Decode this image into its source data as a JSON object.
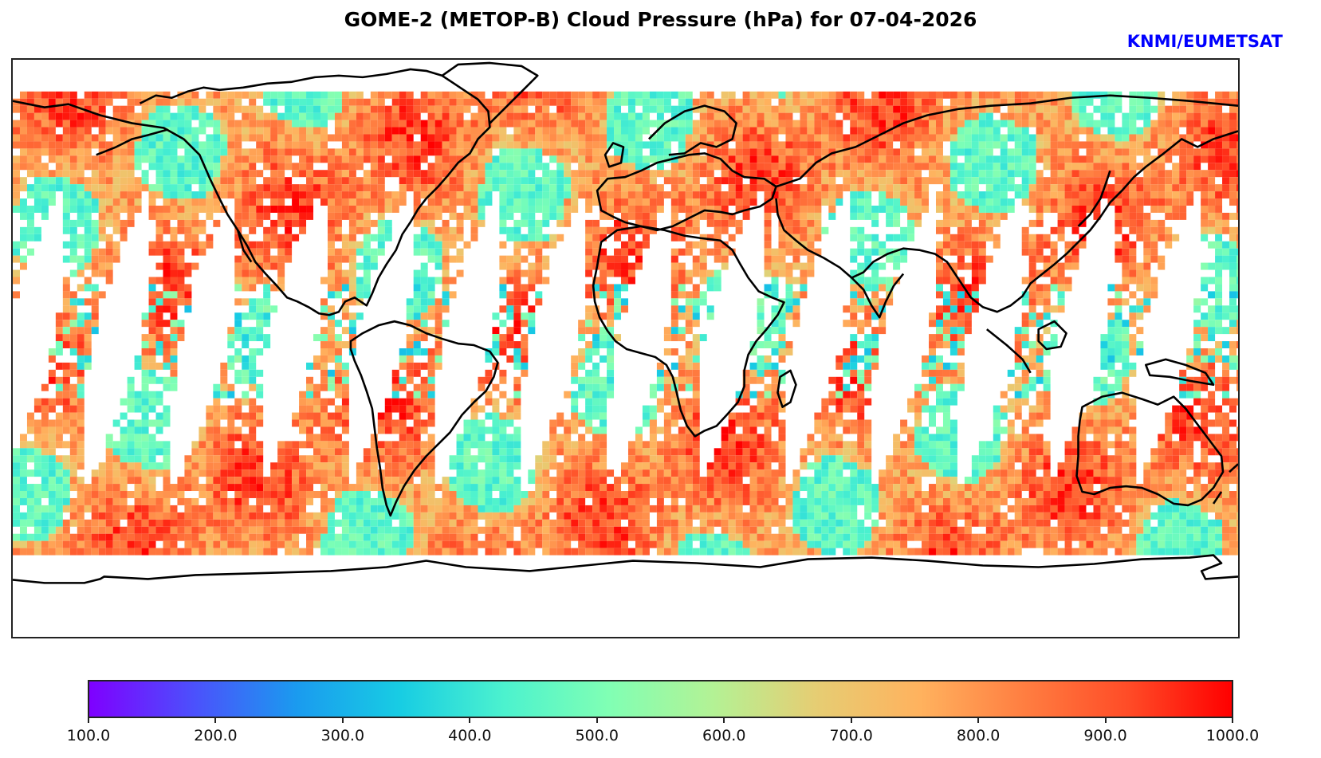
{
  "title": "GOME-2 (METOP-B) Cloud Pressure (hPa) for 07-04-2026",
  "credit": "KNMI/EUMETSAT",
  "map": {
    "projection": "equirectangular",
    "field": "cloud pressure",
    "units": "hPa",
    "no_data_color": "#ffffff",
    "coastline_color": "#000000"
  },
  "colorbar": {
    "colormap": "rainbow",
    "min": 100.0,
    "max": 1000.0,
    "ticks": [
      "100.0",
      "200.0",
      "300.0",
      "400.0",
      "500.0",
      "600.0",
      "700.0",
      "800.0",
      "900.0",
      "1000.0"
    ],
    "tick_values": [
      100,
      200,
      300,
      400,
      500,
      600,
      700,
      800,
      900,
      1000
    ],
    "gradient_stops": [
      "#7f00ff",
      "#4c50fc",
      "#1a9bef",
      "#18cde3",
      "#4cf2ce",
      "#80ffb4",
      "#b3f295",
      "#e6cd73",
      "#ffb25e",
      "#ff7e41",
      "#ff4c27",
      "#ff0000"
    ]
  }
}
